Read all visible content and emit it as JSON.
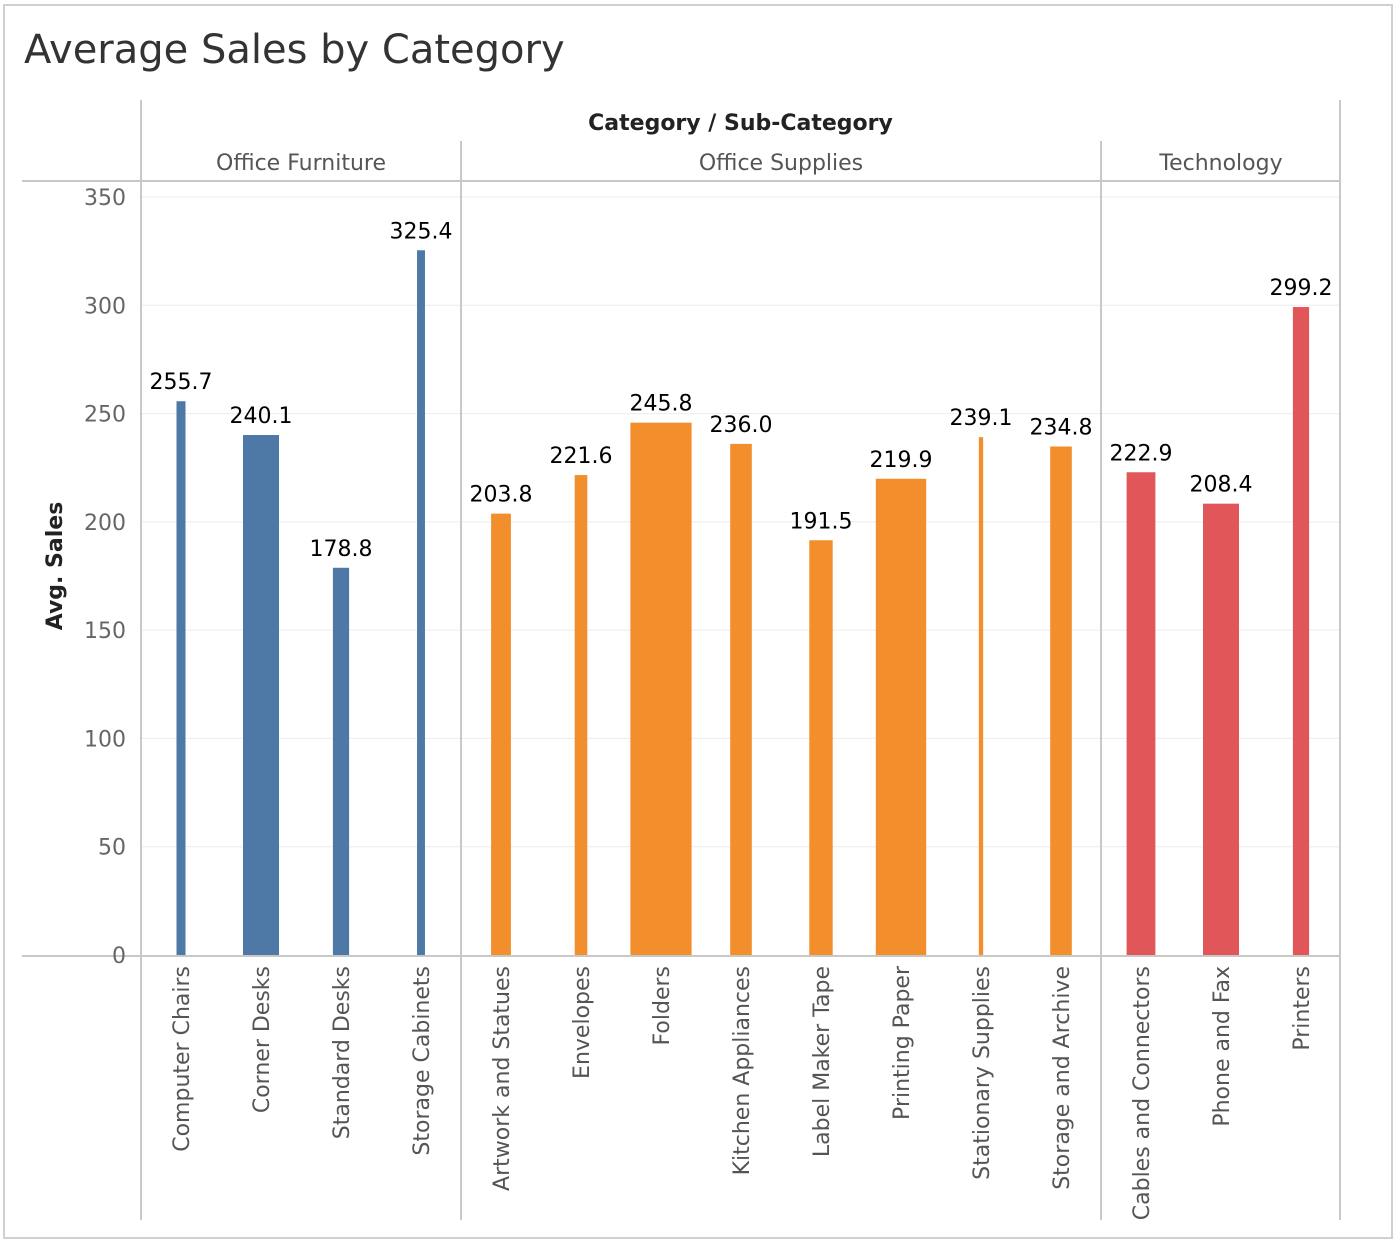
{
  "chart_data": {
    "type": "bar",
    "title": "Average Sales by Category",
    "header_title": "Category / Sub-Category",
    "ylabel": "Avg. Sales",
    "ylim": [
      0,
      350
    ],
    "yticks": [
      0,
      50,
      100,
      150,
      200,
      250,
      300,
      350
    ],
    "grid": true,
    "groups": [
      {
        "name": "Office Furniture",
        "color": "#4e79a7",
        "items": [
          {
            "label": "Computer Chairs",
            "value": 255.7,
            "value_label": "255.7",
            "width_weight": 0.25
          },
          {
            "label": "Corner Desks",
            "value": 240.1,
            "value_label": "240.1",
            "width_weight": 1.0
          },
          {
            "label": "Standard Desks",
            "value": 178.8,
            "value_label": "178.8",
            "width_weight": 0.45
          },
          {
            "label": "Storage Cabinets",
            "value": 325.4,
            "value_label": "325.4",
            "width_weight": 0.22
          }
        ]
      },
      {
        "name": "Office Supplies",
        "color": "#f28e2b",
        "items": [
          {
            "label": "Artwork and Statues",
            "value": 203.8,
            "value_label": "203.8",
            "width_weight": 0.55
          },
          {
            "label": "Envelopes",
            "value": 221.6,
            "value_label": "221.6",
            "width_weight": 0.35
          },
          {
            "label": "Folders",
            "value": 245.8,
            "value_label": "245.8",
            "width_weight": 1.7
          },
          {
            "label": "Kitchen Appliances",
            "value": 236.0,
            "value_label": "236.0",
            "width_weight": 0.6
          },
          {
            "label": "Label Maker Tape",
            "value": 191.5,
            "value_label": "191.5",
            "width_weight": 0.65
          },
          {
            "label": "Printing Paper",
            "value": 219.9,
            "value_label": "219.9",
            "width_weight": 1.4
          },
          {
            "label": "Stationary Supplies",
            "value": 239.1,
            "value_label": "239.1",
            "width_weight": 0.12
          },
          {
            "label": "Storage and Archive",
            "value": 234.8,
            "value_label": "234.8",
            "width_weight": 0.6
          }
        ]
      },
      {
        "name": "Technology",
        "color": "#e15759",
        "items": [
          {
            "label": "Cables and Connectors",
            "value": 222.9,
            "value_label": "222.9",
            "width_weight": 0.8
          },
          {
            "label": "Phone and Fax",
            "value": 208.4,
            "value_label": "208.4",
            "width_weight": 1.0
          },
          {
            "label": "Printers",
            "value": 299.2,
            "value_label": "299.2",
            "width_weight": 0.45
          }
        ]
      }
    ]
  }
}
